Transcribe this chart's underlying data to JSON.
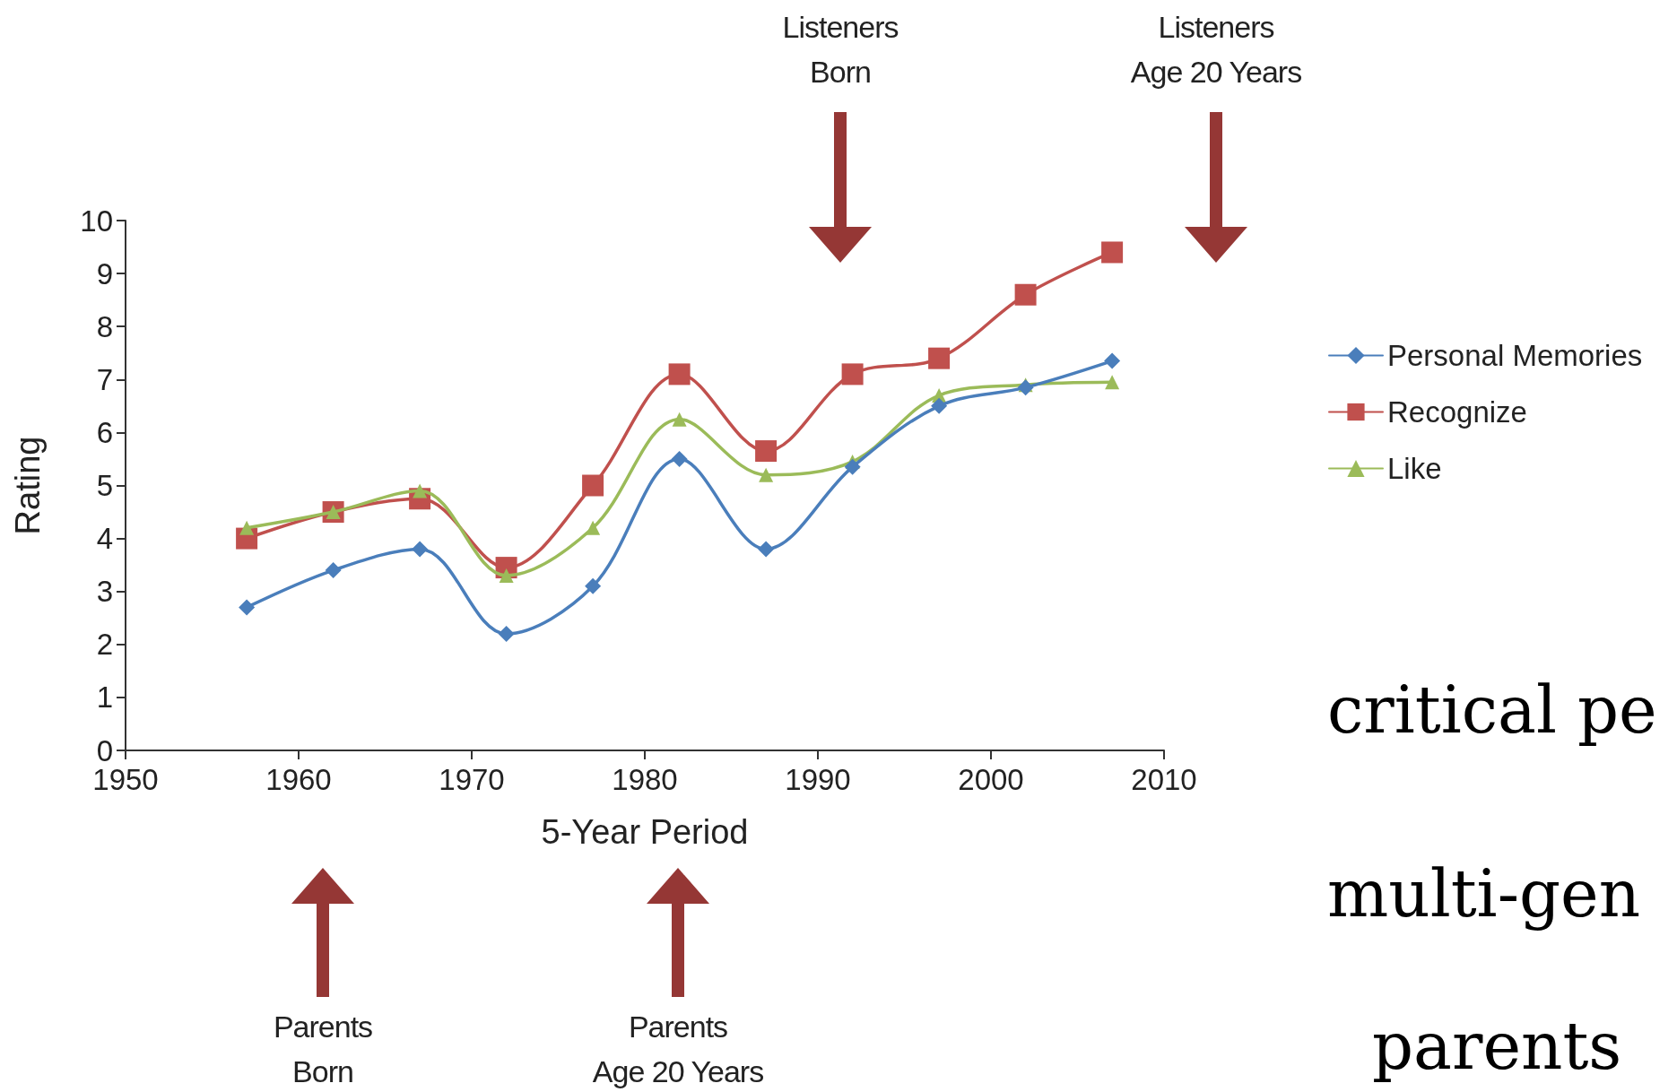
{
  "chart_data": {
    "type": "line",
    "xlabel": "5-Year Period",
    "ylabel": "Rating",
    "x": [
      1957,
      1962,
      1967,
      1972,
      1977,
      1982,
      1987,
      1992,
      1997,
      2002,
      2007
    ],
    "series": [
      {
        "name": "Personal Memories",
        "color": "#4a7ebb",
        "marker": "diamond",
        "values": [
          2.7,
          3.4,
          3.8,
          2.2,
          3.1,
          5.5,
          3.8,
          5.35,
          6.5,
          6.85,
          7.35
        ]
      },
      {
        "name": "Recognize",
        "color": "#c0504d",
        "marker": "square",
        "values": [
          4.0,
          4.5,
          4.75,
          3.45,
          5.0,
          7.1,
          5.65,
          7.1,
          7.4,
          8.6,
          9.4
        ]
      },
      {
        "name": "Like",
        "color": "#9bbb59",
        "marker": "triangle",
        "values": [
          4.2,
          4.5,
          4.9,
          3.3,
          4.2,
          6.25,
          5.2,
          5.45,
          6.7,
          6.9,
          6.95
        ]
      }
    ],
    "xlim": [
      1950,
      2010
    ],
    "xticks": [
      1950,
      1960,
      1970,
      1980,
      1990,
      2000,
      2010
    ],
    "ylim": [
      0,
      10
    ],
    "yticks": [
      0,
      1,
      2,
      3,
      4,
      5,
      6,
      7,
      8,
      9,
      10
    ],
    "grid": false,
    "legend": "right",
    "annotations": [
      "Listeners\nBorn",
      "Listeners\nAge 20 Years",
      "Parents\nBorn",
      "Parents\nAge 20 Years",
      "critical pe",
      "multi-gen",
      "parents"
    ]
  }
}
